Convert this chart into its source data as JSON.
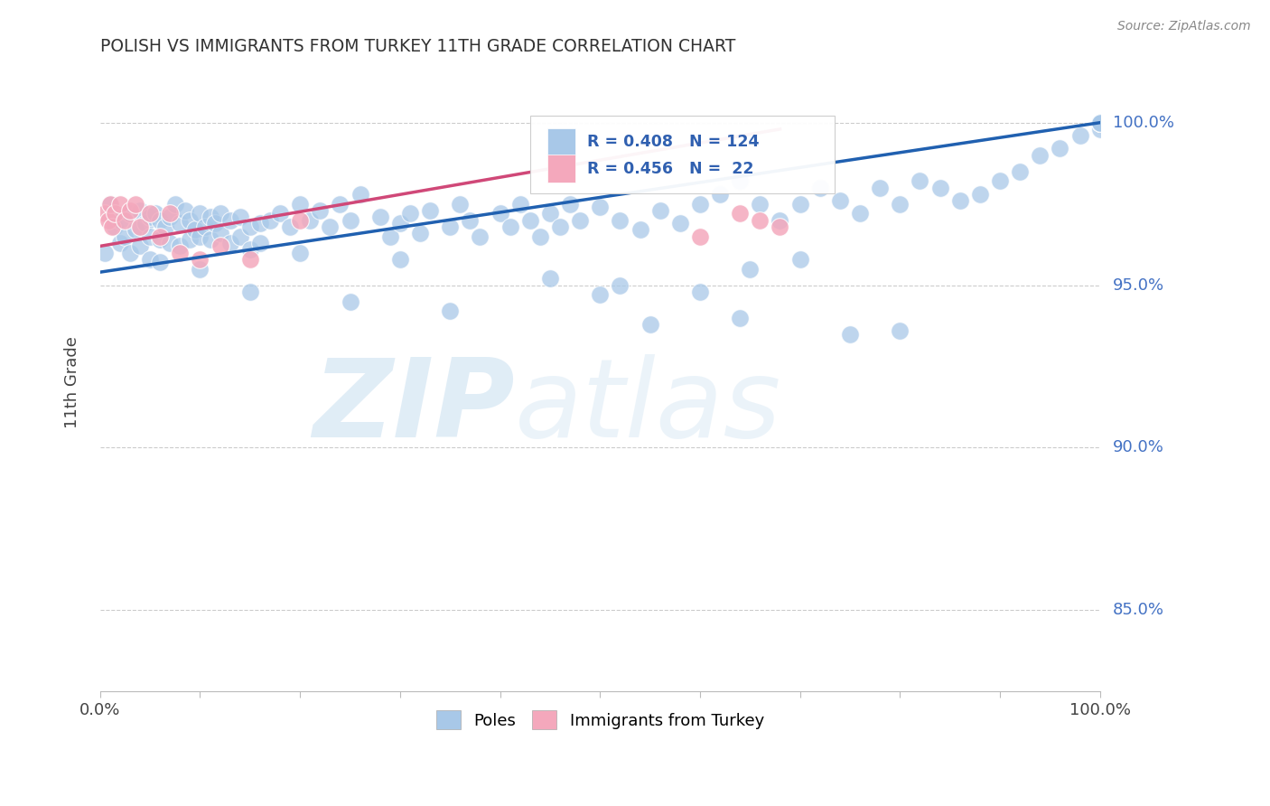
{
  "title": "POLISH VS IMMIGRANTS FROM TURKEY 11TH GRADE CORRELATION CHART",
  "source": "Source: ZipAtlas.com",
  "ylabel": "11th Grade",
  "ytick_labels": [
    "85.0%",
    "90.0%",
    "95.0%",
    "100.0%"
  ],
  "ytick_values": [
    0.85,
    0.9,
    0.95,
    1.0
  ],
  "xlim": [
    0.0,
    1.0
  ],
  "ylim": [
    0.825,
    1.015
  ],
  "poles_color": "#a8c8e8",
  "turkey_color": "#f4a8bc",
  "poles_line_color": "#2060b0",
  "turkey_line_color": "#d04878",
  "poles_R": 0.408,
  "poles_N": 124,
  "turkey_R": 0.456,
  "turkey_N": 22,
  "legend_label_poles": "Poles",
  "legend_label_turkey": "Immigrants from Turkey",
  "watermark_zip": "ZIP",
  "watermark_atlas": "atlas",
  "poles_x": [
    0.005,
    0.01,
    0.015,
    0.02,
    0.02,
    0.025,
    0.03,
    0.03,
    0.035,
    0.04,
    0.04,
    0.045,
    0.05,
    0.05,
    0.05,
    0.055,
    0.06,
    0.06,
    0.06,
    0.065,
    0.07,
    0.07,
    0.075,
    0.08,
    0.08,
    0.085,
    0.09,
    0.09,
    0.095,
    0.1,
    0.1,
    0.105,
    0.11,
    0.11,
    0.115,
    0.12,
    0.12,
    0.13,
    0.13,
    0.14,
    0.14,
    0.15,
    0.15,
    0.16,
    0.16,
    0.17,
    0.18,
    0.19,
    0.2,
    0.21,
    0.22,
    0.23,
    0.24,
    0.25,
    0.26,
    0.28,
    0.29,
    0.3,
    0.31,
    0.32,
    0.33,
    0.35,
    0.36,
    0.37,
    0.38,
    0.4,
    0.41,
    0.42,
    0.43,
    0.44,
    0.45,
    0.46,
    0.47,
    0.48,
    0.5,
    0.52,
    0.54,
    0.56,
    0.58,
    0.6,
    0.62,
    0.64,
    0.66,
    0.68,
    0.7,
    0.72,
    0.74,
    0.76,
    0.78,
    0.8,
    0.82,
    0.84,
    0.86,
    0.88,
    0.9,
    0.92,
    0.94,
    0.96,
    0.98,
    1.0,
    1.0,
    1.0,
    1.0,
    1.0,
    1.0,
    1.0,
    1.0,
    1.0,
    0.5,
    0.52,
    0.6,
    0.64,
    0.75,
    0.8,
    0.65,
    0.7,
    0.55,
    0.45,
    0.35,
    0.3,
    0.25,
    0.2,
    0.15,
    0.1
  ],
  "poles_y": [
    0.96,
    0.975,
    0.968,
    0.97,
    0.963,
    0.965,
    0.972,
    0.96,
    0.967,
    0.973,
    0.962,
    0.969,
    0.971,
    0.965,
    0.958,
    0.972,
    0.97,
    0.964,
    0.957,
    0.968,
    0.971,
    0.963,
    0.975,
    0.969,
    0.962,
    0.973,
    0.97,
    0.964,
    0.967,
    0.972,
    0.965,
    0.968,
    0.971,
    0.964,
    0.969,
    0.972,
    0.966,
    0.97,
    0.963,
    0.971,
    0.965,
    0.968,
    0.961,
    0.969,
    0.963,
    0.97,
    0.972,
    0.968,
    0.975,
    0.97,
    0.973,
    0.968,
    0.975,
    0.97,
    0.978,
    0.971,
    0.965,
    0.969,
    0.972,
    0.966,
    0.973,
    0.968,
    0.975,
    0.97,
    0.965,
    0.972,
    0.968,
    0.975,
    0.97,
    0.965,
    0.972,
    0.968,
    0.975,
    0.97,
    0.974,
    0.97,
    0.967,
    0.973,
    0.969,
    0.975,
    0.978,
    0.982,
    0.975,
    0.97,
    0.975,
    0.98,
    0.976,
    0.972,
    0.98,
    0.975,
    0.982,
    0.98,
    0.976,
    0.978,
    0.982,
    0.985,
    0.99,
    0.992,
    0.996,
    0.998,
    1.0,
    1.0,
    1.0,
    1.0,
    1.0,
    1.0,
    1.0,
    1.0,
    0.947,
    0.95,
    0.948,
    0.94,
    0.935,
    0.936,
    0.955,
    0.958,
    0.938,
    0.952,
    0.942,
    0.958,
    0.945,
    0.96,
    0.948,
    0.955
  ],
  "turkey_x": [
    0.005,
    0.008,
    0.01,
    0.012,
    0.015,
    0.02,
    0.025,
    0.03,
    0.035,
    0.04,
    0.05,
    0.06,
    0.07,
    0.08,
    0.1,
    0.12,
    0.15,
    0.2,
    0.6,
    0.64,
    0.66,
    0.68
  ],
  "turkey_y": [
    0.972,
    0.97,
    0.975,
    0.968,
    0.972,
    0.975,
    0.97,
    0.973,
    0.975,
    0.968,
    0.972,
    0.965,
    0.972,
    0.96,
    0.958,
    0.962,
    0.958,
    0.97,
    0.965,
    0.972,
    0.97,
    0.968
  ],
  "poles_line_x": [
    0.0,
    1.0
  ],
  "poles_line_y": [
    0.954,
    1.0
  ],
  "turkey_line_x": [
    0.0,
    0.68
  ],
  "turkey_line_y": [
    0.962,
    0.998
  ]
}
